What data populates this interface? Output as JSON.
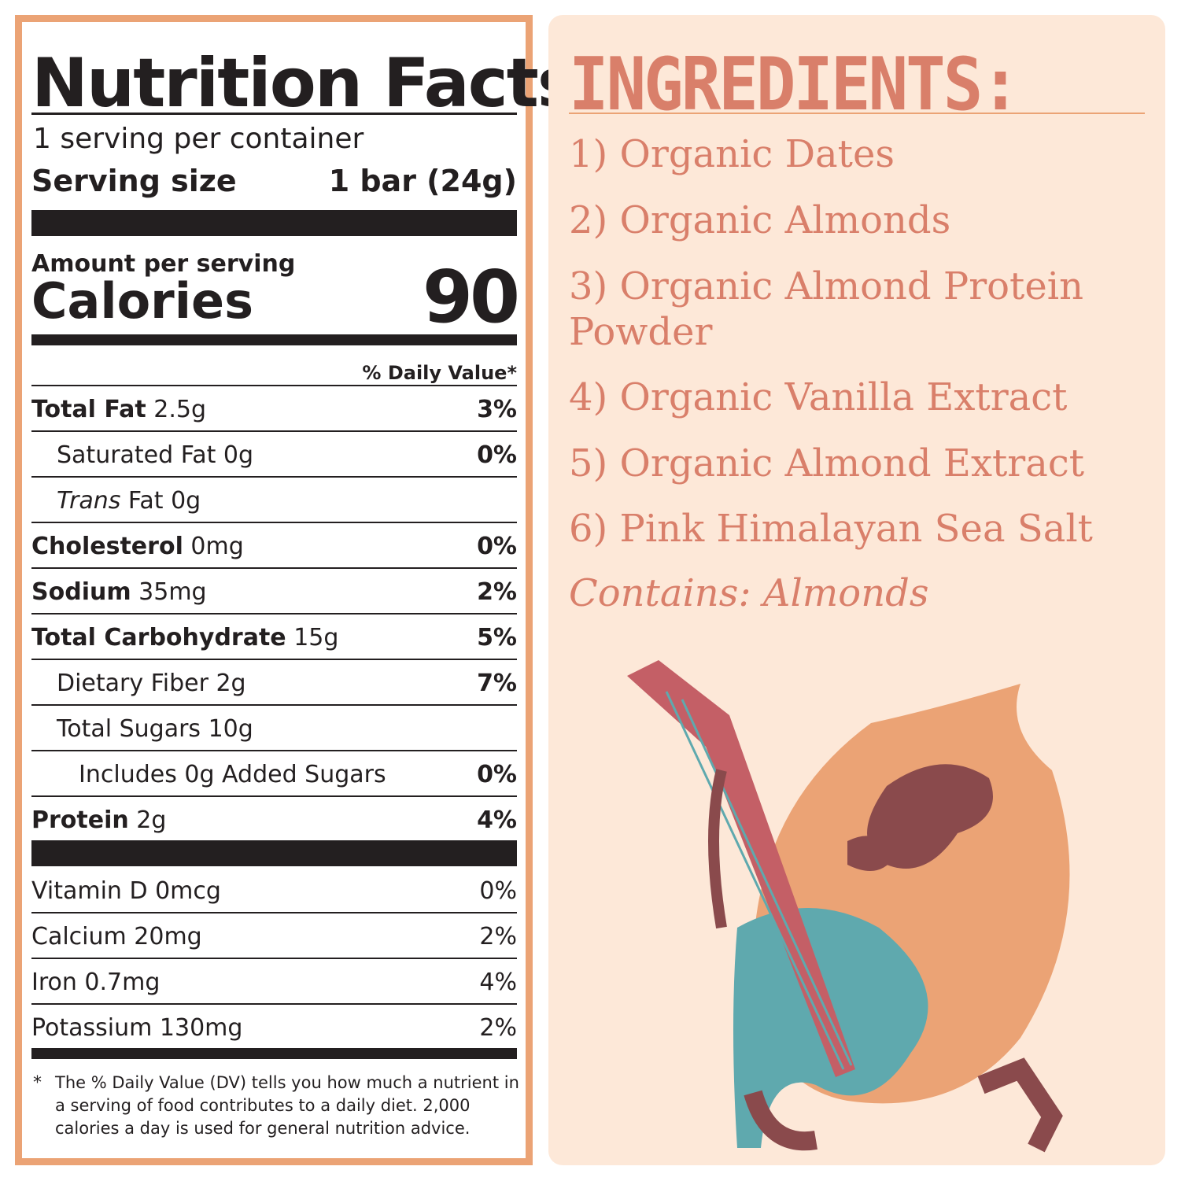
{
  "nutrition": {
    "title": "Nutrition Facts",
    "servings": "1 serving per container",
    "serving_size_label": "Serving size",
    "serving_size_value": "1 bar (24g)",
    "amount_per_serving": "Amount per serving",
    "calories_label": "Calories",
    "calories_value": "90",
    "dv_header": "% Daily Value*",
    "rows": [
      {
        "name": "Total Fat",
        "amount": "2.5g",
        "dv": "3%"
      },
      {
        "name": "Saturated Fat 0g",
        "amount": "",
        "dv": "0%"
      },
      {
        "name": "Trans",
        "amount": "Fat 0g",
        "dv": ""
      },
      {
        "name": "Cholesterol",
        "amount": "0mg",
        "dv": "0%"
      },
      {
        "name": "Sodium",
        "amount": "35mg",
        "dv": "2%"
      },
      {
        "name": "Total Carbohydrate",
        "amount": "15g",
        "dv": "5%"
      },
      {
        "name": "Dietary Fiber 2g",
        "amount": "",
        "dv": "7%"
      },
      {
        "name": "Total Sugars 10g",
        "amount": "",
        "dv": ""
      },
      {
        "name": "Includes 0g Added Sugars",
        "amount": "",
        "dv": "0%"
      },
      {
        "name": "Protein",
        "amount": "2g",
        "dv": "4%"
      }
    ],
    "vitamins": [
      {
        "name": "Vitamin D 0mcg",
        "dv": "0%"
      },
      {
        "name": "Calcium 20mg",
        "dv": "2%"
      },
      {
        "name": "Iron 0.7mg",
        "dv": "4%"
      },
      {
        "name": "Potassium 130mg",
        "dv": "2%"
      }
    ],
    "footnote_star": "*",
    "footnote": "The % Daily Value (DV) tells you how much a nutrient in a serving of food contributes to a daily diet. 2,000 calories a day is used for general nutrition advice."
  },
  "ingredients": {
    "heading": "INGREDIENTS:",
    "items": [
      "1) Organic Dates",
      "2) Organic Almonds",
      "3) Organic Almond Protein Powder",
      "4) Organic Vanilla Extract",
      "5) Organic Almond Extract",
      "6) Pink Himalayan Sea Salt"
    ],
    "contains": "Contains: Almonds"
  },
  "colors": {
    "border": "#eba375",
    "panel": "#fde8d8",
    "accent": "#d97f6a",
    "ink": "#231f20",
    "guitar": "#5fa9ae",
    "almond": "#eba375",
    "dark": "#8a4a4c"
  }
}
